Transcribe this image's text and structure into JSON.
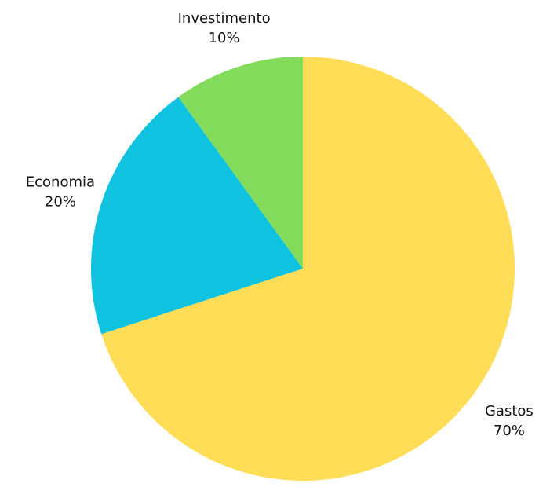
{
  "chart_data": {
    "type": "pie",
    "title": "",
    "start_angle_deg": 0,
    "direction": "clockwise",
    "slices": [
      {
        "label": "Gastos",
        "value": 70,
        "display": "70%",
        "color": "#FFDD57"
      },
      {
        "label": "Economia",
        "value": 20,
        "display": "20%",
        "color": "#0EC2E0"
      },
      {
        "label": "Investimento",
        "value": 10,
        "display": "10%",
        "color": "#82DB5A"
      }
    ]
  }
}
